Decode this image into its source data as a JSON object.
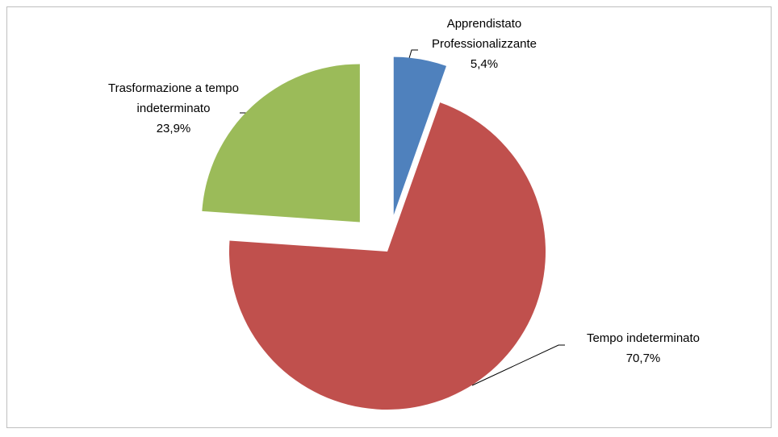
{
  "chart_data": {
    "type": "pie",
    "categories": [
      "Apprendistato Professionalizzante",
      "Tempo indeterminato",
      "Trasformazione a tempo indeterminato"
    ],
    "values": [
      5.4,
      70.7,
      23.9
    ],
    "value_labels": [
      "5,4%",
      "70,7%",
      "23,9%"
    ],
    "colors": [
      "#4f81bd",
      "#c0504d",
      "#9bbb59"
    ]
  }
}
